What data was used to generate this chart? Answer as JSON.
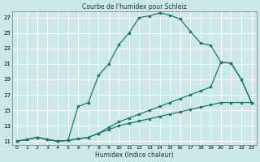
{
  "title": "Courbe de l'humidex pour Schleiz",
  "xlabel": "Humidex (Indice chaleur)",
  "bg_color": "#cce8e8",
  "grid_color": "#ffffff",
  "line_color": "#1a7a6e",
  "xlim": [
    -0.5,
    23.5
  ],
  "ylim": [
    10.5,
    27.8
  ],
  "xticks": [
    0,
    1,
    2,
    3,
    4,
    5,
    6,
    7,
    8,
    9,
    10,
    11,
    12,
    13,
    14,
    15,
    16,
    17,
    18,
    19,
    20,
    21,
    22,
    23
  ],
  "yticks": [
    11,
    13,
    15,
    17,
    19,
    21,
    23,
    25,
    27
  ],
  "line1_x": [
    0,
    1,
    2,
    3,
    4,
    5,
    6,
    7,
    8,
    9,
    10,
    11,
    12,
    13,
    14,
    15,
    16,
    17,
    18,
    19,
    20,
    21,
    22,
    23
  ],
  "line1_y": [
    11.0,
    11.2,
    11.5,
    11.2,
    11.0,
    11.1,
    15.5,
    16.0,
    19.5,
    21.0,
    23.5,
    25.0,
    27.0,
    27.2,
    27.6,
    27.3,
    26.8,
    25.2,
    23.7,
    23.4,
    21.2,
    21.1,
    19.0,
    16.0
  ],
  "line2_x": [
    0,
    1,
    2,
    3,
    4,
    5,
    6,
    7,
    8,
    9,
    10,
    11,
    12,
    13,
    14,
    15,
    16,
    17,
    18,
    19,
    20,
    21,
    22,
    23
  ],
  "line2_y": [
    11.0,
    11.2,
    11.5,
    11.2,
    11.0,
    11.1,
    11.3,
    11.5,
    12.0,
    12.8,
    13.5,
    14.0,
    14.5,
    15.0,
    15.5,
    16.0,
    16.5,
    17.0,
    17.5,
    18.0,
    21.2,
    21.1,
    19.0,
    16.0
  ],
  "line3_x": [
    0,
    1,
    2,
    3,
    4,
    5,
    6,
    7,
    8,
    9,
    10,
    11,
    12,
    13,
    14,
    15,
    16,
    17,
    18,
    19,
    20,
    21,
    22,
    23
  ],
  "line3_y": [
    11.0,
    11.2,
    11.5,
    11.2,
    11.0,
    11.1,
    11.3,
    11.5,
    12.0,
    12.5,
    13.0,
    13.3,
    13.6,
    13.9,
    14.2,
    14.5,
    14.8,
    15.1,
    15.4,
    15.7,
    16.0,
    16.0,
    16.0,
    16.0
  ]
}
